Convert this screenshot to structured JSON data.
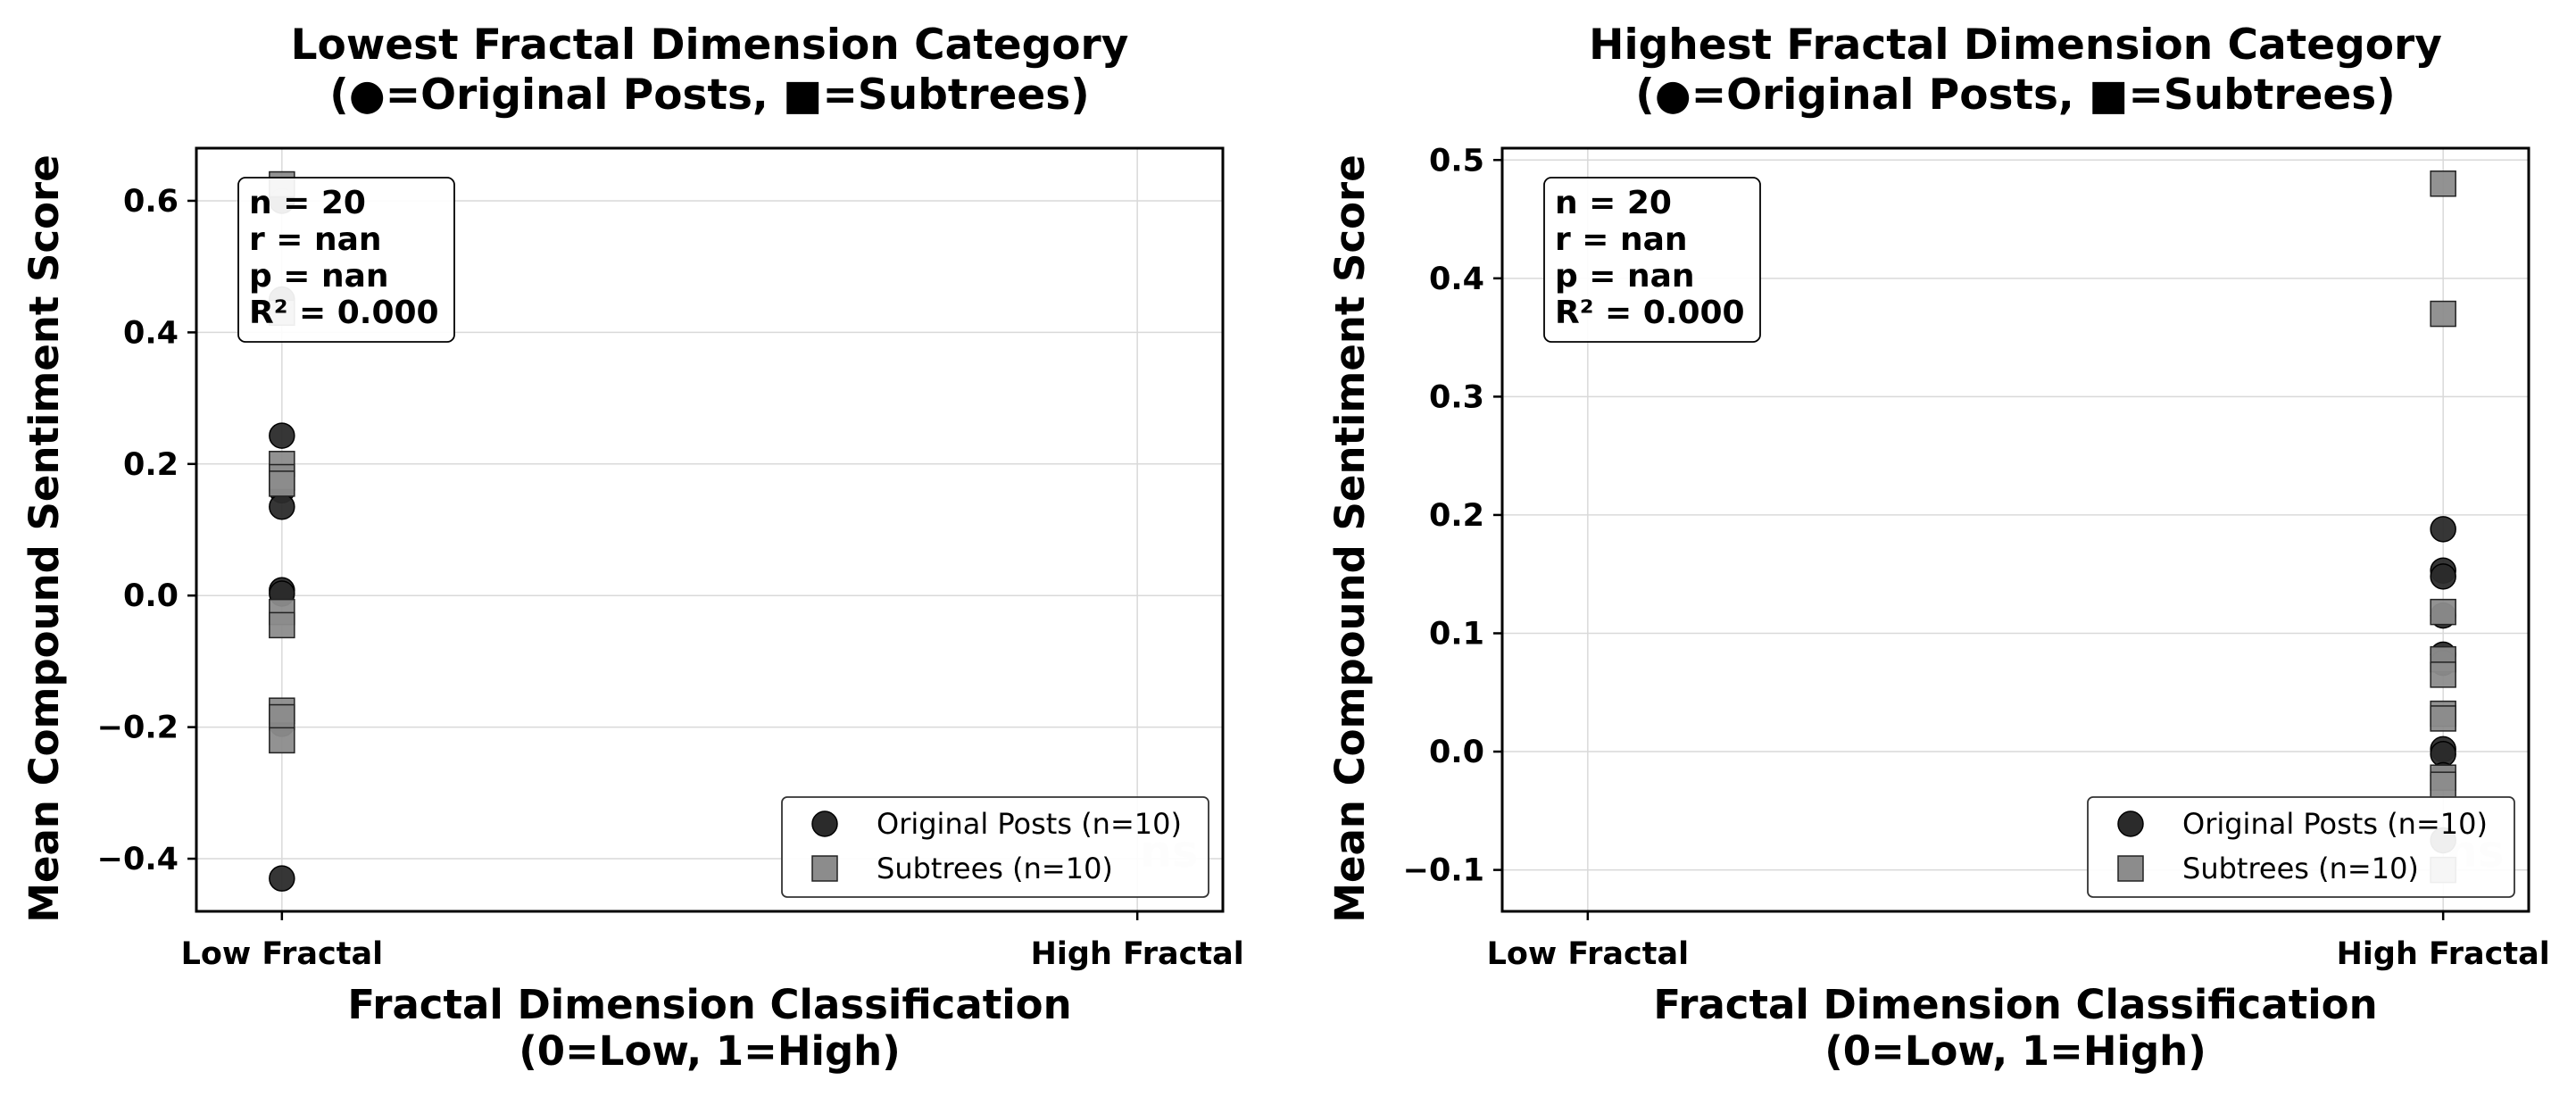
{
  "chart_data": [
    {
      "type": "scatter",
      "title": [
        "Lowest Fractal Dimension Category",
        "(●=Original Posts, ■=Subtrees)"
      ],
      "xlabel": [
        "Fractal Dimension Classification",
        "(0=Low, 1=High)"
      ],
      "ylabel": "Mean Compound Sentiment Score",
      "xlim": [
        -0.1,
        1.1
      ],
      "ylim": [
        -0.48,
        0.68
      ],
      "x_ticks": [
        0,
        1
      ],
      "x_tick_labels": [
        "Low Fractal",
        "High Fractal"
      ],
      "y_ticks": [
        -0.4,
        -0.2,
        0.0,
        0.2,
        0.4,
        0.6
      ],
      "y_tick_labels": [
        "−0.4",
        "−0.2",
        "0.0",
        "0.2",
        "0.4",
        "0.6"
      ],
      "grid": true,
      "stats": [
        "n = 20",
        "r = nan",
        "p = nan",
        "R² = 0.000"
      ],
      "stats_position": "top-left",
      "significance_label": "ns",
      "legend_position": "bottom-right",
      "series": [
        {
          "name": "Original Posts (n=10)",
          "marker": "circle",
          "color": "#2b2b2b",
          "points": [
            [
              0,
              0.243
            ],
            [
              0,
              0.16
            ],
            [
              0,
              0.135
            ],
            [
              0,
              0.008
            ],
            [
              0,
              0.003
            ],
            [
              0,
              -0.19
            ],
            [
              0,
              -0.195
            ],
            [
              0,
              -0.43
            ],
            [
              0,
              0.45
            ],
            [
              0,
              0.6
            ]
          ]
        },
        {
          "name": "Subtrees (n=10)",
          "marker": "square",
          "color": "#8c8c8c",
          "points": [
            [
              0,
              0.625
            ],
            [
              0,
              0.43
            ],
            [
              0,
              0.2
            ],
            [
              0,
              0.18
            ],
            [
              0,
              0.17
            ],
            [
              0,
              -0.025
            ],
            [
              0,
              -0.045
            ],
            [
              0,
              -0.175
            ],
            [
              0,
              -0.185
            ],
            [
              0,
              -0.22
            ]
          ]
        }
      ]
    },
    {
      "type": "scatter",
      "title": [
        "Highest Fractal Dimension Category",
        "(●=Original Posts, ■=Subtrees)"
      ],
      "xlabel": [
        "Fractal Dimension Classification",
        "(0=Low, 1=High)"
      ],
      "ylabel": "Mean Compound Sentiment Score",
      "xlim": [
        -0.1,
        1.1
      ],
      "ylim": [
        -0.135,
        0.51
      ],
      "x_ticks": [
        0,
        1
      ],
      "x_tick_labels": [
        "Low Fractal",
        "High Fractal"
      ],
      "y_ticks": [
        -0.1,
        0.0,
        0.1,
        0.2,
        0.3,
        0.4,
        0.5
      ],
      "y_tick_labels": [
        "−0.1",
        "0.0",
        "0.1",
        "0.2",
        "0.3",
        "0.4",
        "0.5"
      ],
      "grid": true,
      "stats": [
        "n = 20",
        "r = nan",
        "p = nan",
        "R² = 0.000"
      ],
      "stats_position": "top-left",
      "significance_label": "ns",
      "legend_position": "bottom-right",
      "series": [
        {
          "name": "Original Posts (n=10)",
          "marker": "circle",
          "color": "#2b2b2b",
          "points": [
            [
              1,
              0.188
            ],
            [
              1,
              0.153
            ],
            [
              1,
              0.148
            ],
            [
              1,
              0.115
            ],
            [
              1,
              0.082
            ],
            [
              1,
              0.075
            ],
            [
              1,
              0.002
            ],
            [
              1,
              -0.002
            ],
            [
              1,
              -0.02
            ],
            [
              1,
              -0.075
            ]
          ]
        },
        {
          "name": "Subtrees (n=10)",
          "marker": "square",
          "color": "#8c8c8c",
          "points": [
            [
              1,
              0.48
            ],
            [
              1,
              0.37
            ],
            [
              1,
              0.118
            ],
            [
              1,
              0.078
            ],
            [
              1,
              0.065
            ],
            [
              1,
              0.032
            ],
            [
              1,
              0.028
            ],
            [
              1,
              -0.022
            ],
            [
              1,
              -0.028
            ],
            [
              1,
              -0.1
            ]
          ]
        }
      ]
    }
  ]
}
